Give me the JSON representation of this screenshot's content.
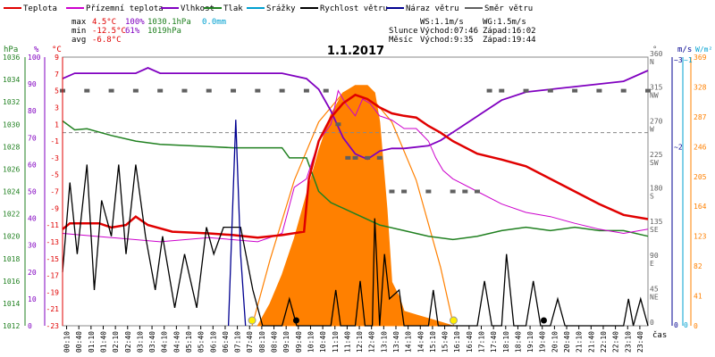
{
  "chart_data": {
    "type": "line",
    "title": "1.1.2017",
    "legend": [
      {
        "name": "Teplota",
        "color": "#e00000"
      },
      {
        "name": "Přízemní teplota",
        "color": "#cc00cc"
      },
      {
        "name": "Vlhkost",
        "color": "#8000c0"
      },
      {
        "name": "Tlak",
        "color": "#208020"
      },
      {
        "name": "Srážky",
        "color": "#00a0d0"
      },
      {
        "name": "Rychlost větru",
        "color": "#000000"
      },
      {
        "name": "Náraz větru",
        "color": "#000090"
      },
      {
        "name": "Směr větru",
        "color": "#606060"
      }
    ],
    "stats": {
      "max_label": "max",
      "max_temp": "4.5°C",
      "max_hum": "100%",
      "max_press": "1030.1hPa",
      "max_rain": "0.0mm",
      "min_label": "min",
      "min_temp": "-12.5°C",
      "min_hum": "61%",
      "min_press": "1019hPa",
      "avg_label": "avg",
      "avg_temp": "-6.8°C",
      "ws": "WS:1.1m/s",
      "wg": "WG:1.5m/s",
      "sun_label": "Slunce",
      "sun_rise": "Východ:07:46",
      "sun_set": "Západ:16:02",
      "moon_label": "Měsíc",
      "moon_rise": "Východ:9:35",
      "moon_set": "Západ:19:44"
    },
    "axes": {
      "hpa_label": "hPa",
      "pct_label": "%",
      "c_label": "°C",
      "deg_label": "°",
      "ms_label": "m/s",
      "wm2_label": "W/m²",
      "x_label": "čas",
      "hpa_ticks": [
        "1036",
        "1034",
        "1032",
        "1030",
        "1028",
        "1026",
        "1024",
        "1022",
        "1020",
        "1018",
        "1016",
        "1014",
        "1012"
      ],
      "pct_ticks": [
        "100",
        "90",
        "80",
        "70",
        "60",
        "50",
        "40",
        "30",
        "20",
        "10",
        "0"
      ],
      "c_ticks": [
        "9",
        "7",
        "5",
        "3",
        "1",
        "-1",
        "-3",
        "-5",
        "-7",
        "-9",
        "-11",
        "-13",
        "-15",
        "-17",
        "-19",
        "-21",
        "-23"
      ],
      "deg_ticks": [
        {
          "v": "360",
          "d": "N"
        },
        {
          "v": "315",
          "d": "NW"
        },
        {
          "v": "270",
          "d": "W"
        },
        {
          "v": "225",
          "d": "SW"
        },
        {
          "v": "180",
          "d": "S"
        },
        {
          "v": "135",
          "d": "SE"
        },
        {
          "v": "90",
          "d": "E"
        },
        {
          "v": "45",
          "d": "NE"
        },
        {
          "v": "0",
          "d": ""
        }
      ],
      "ms_top": "~3",
      "ms_mid": "~2",
      "ms_zero": "0",
      "rad_top": "~1",
      "rad_zero": "0",
      "wm2_ticks": [
        "369",
        "328",
        "287",
        "246",
        "205",
        "164",
        "123",
        "82",
        "41",
        "0"
      ],
      "time_ticks": [
        "00:10",
        "00:40",
        "01:10",
        "01:40",
        "02:10",
        "02:40",
        "03:10",
        "03:40",
        "04:10",
        "04:40",
        "05:10",
        "05:40",
        "06:10",
        "06:40",
        "07:10",
        "07:40",
        "08:10",
        "08:40",
        "09:10",
        "09:40",
        "10:10",
        "10:40",
        "11:10",
        "11:40",
        "12:10",
        "12:40",
        "13:10",
        "13:40",
        "14:10",
        "14:40",
        "15:10",
        "15:40",
        "16:10",
        "16:40",
        "17:10",
        "17:40",
        "18:10",
        "18:40",
        "19:10",
        "19:40",
        "20:10",
        "20:40",
        "21:10",
        "21:40",
        "22:10",
        "22:40",
        "23:10",
        "23:40"
      ]
    },
    "series": {
      "temp": [
        [
          0,
          -11.5
        ],
        [
          0.3,
          -10.8
        ],
        [
          1.5,
          -10.8
        ],
        [
          2.0,
          -11.3
        ],
        [
          2.6,
          -11.0
        ],
        [
          3.0,
          -10.0
        ],
        [
          3.5,
          -11.0
        ],
        [
          4.5,
          -11.8
        ],
        [
          6.0,
          -12.0
        ],
        [
          7.0,
          -12.2
        ],
        [
          8.0,
          -12.5
        ],
        [
          9.0,
          -12.2
        ],
        [
          9.9,
          -11.8
        ],
        [
          10.1,
          -5.5
        ],
        [
          10.5,
          -1.0
        ],
        [
          11.0,
          1.8
        ],
        [
          11.5,
          3.5
        ],
        [
          12.0,
          4.5
        ],
        [
          12.5,
          4.0
        ],
        [
          13.0,
          3.0
        ],
        [
          13.5,
          2.3
        ],
        [
          14.0,
          2.0
        ],
        [
          14.5,
          1.8
        ],
        [
          15.0,
          0.8
        ],
        [
          15.5,
          0.0
        ],
        [
          16.0,
          -1.0
        ],
        [
          17.0,
          -2.5
        ],
        [
          18.0,
          -3.2
        ],
        [
          19.0,
          -4.0
        ],
        [
          20.0,
          -5.5
        ],
        [
          21.0,
          -7.0
        ],
        [
          22.0,
          -8.5
        ],
        [
          23.0,
          -9.8
        ],
        [
          24.0,
          -10.3
        ]
      ],
      "ground": [
        [
          0,
          -12.0
        ],
        [
          2.0,
          -12.5
        ],
        [
          4.0,
          -13.0
        ],
        [
          6.0,
          -12.5
        ],
        [
          8.0,
          -13.0
        ],
        [
          9.0,
          -12.0
        ],
        [
          9.5,
          -6.5
        ],
        [
          10.0,
          -5.5
        ],
        [
          10.5,
          -1.0
        ],
        [
          11.0,
          1.0
        ],
        [
          11.3,
          5.0
        ],
        [
          11.6,
          3.5
        ],
        [
          12.0,
          2.0
        ],
        [
          12.3,
          4.0
        ],
        [
          12.6,
          3.5
        ],
        [
          13.0,
          2.0
        ],
        [
          13.5,
          1.5
        ],
        [
          14.0,
          0.5
        ],
        [
          14.5,
          0.5
        ],
        [
          15.0,
          -1.0
        ],
        [
          15.3,
          -3.0
        ],
        [
          15.6,
          -4.5
        ],
        [
          16.0,
          -5.5
        ],
        [
          17.0,
          -7.0
        ],
        [
          18.0,
          -8.5
        ],
        [
          19.0,
          -9.5
        ],
        [
          20.0,
          -10.0
        ],
        [
          21.0,
          -10.8
        ],
        [
          22.0,
          -11.5
        ],
        [
          23.0,
          -12.0
        ],
        [
          24.0,
          -11.5
        ]
      ],
      "humidity": [
        [
          0,
          92
        ],
        [
          0.5,
          94
        ],
        [
          2.0,
          94
        ],
        [
          3.0,
          94
        ],
        [
          3.5,
          96
        ],
        [
          4.0,
          94
        ],
        [
          6.0,
          94
        ],
        [
          8.0,
          94
        ],
        [
          9.0,
          94
        ],
        [
          10.0,
          92
        ],
        [
          10.5,
          88
        ],
        [
          11.0,
          80
        ],
        [
          11.5,
          70
        ],
        [
          12.0,
          64
        ],
        [
          12.5,
          62
        ],
        [
          13.0,
          65
        ],
        [
          13.5,
          66
        ],
        [
          14.0,
          66
        ],
        [
          15.0,
          67
        ],
        [
          15.5,
          69
        ],
        [
          16.0,
          72
        ],
        [
          17.0,
          78
        ],
        [
          18.0,
          84
        ],
        [
          19.0,
          87
        ],
        [
          20.0,
          88
        ],
        [
          21.0,
          89
        ],
        [
          22.0,
          90
        ],
        [
          23.0,
          91
        ],
        [
          24.0,
          95
        ]
      ],
      "pressure": [
        [
          0,
          1030.3
        ],
        [
          0.5,
          1029.5
        ],
        [
          1.0,
          1029.6
        ],
        [
          2.0,
          1029.0
        ],
        [
          3.0,
          1028.5
        ],
        [
          4.0,
          1028.2
        ],
        [
          6.0,
          1028.0
        ],
        [
          7.0,
          1027.9
        ],
        [
          8.0,
          1027.9
        ],
        [
          9.0,
          1027.9
        ],
        [
          9.3,
          1027.0
        ],
        [
          10.0,
          1027.0
        ],
        [
          10.5,
          1024.0
        ],
        [
          11.0,
          1023.0
        ],
        [
          12.0,
          1022.0
        ],
        [
          13.0,
          1021.0
        ],
        [
          14.0,
          1020.5
        ],
        [
          15.0,
          1020.0
        ],
        [
          16.0,
          1019.7
        ],
        [
          17.0,
          1020.0
        ],
        [
          18.0,
          1020.5
        ],
        [
          19.0,
          1020.8
        ],
        [
          20.0,
          1020.5
        ],
        [
          21.0,
          1020.8
        ],
        [
          22.0,
          1020.5
        ],
        [
          23.0,
          1020.5
        ],
        [
          24.0,
          1020.0
        ]
      ],
      "wind": [
        [
          0,
          0.6
        ],
        [
          0.3,
          1.6
        ],
        [
          0.6,
          0.8
        ],
        [
          1.0,
          1.8
        ],
        [
          1.3,
          0.4
        ],
        [
          1.6,
          1.4
        ],
        [
          2.0,
          1.0
        ],
        [
          2.3,
          1.8
        ],
        [
          2.6,
          0.8
        ],
        [
          3.0,
          1.8
        ],
        [
          3.4,
          1.0
        ],
        [
          3.8,
          0.4
        ],
        [
          4.1,
          1.0
        ],
        [
          4.6,
          0.2
        ],
        [
          5.0,
          0.8
        ],
        [
          5.5,
          0.2
        ],
        [
          5.9,
          1.1
        ],
        [
          6.2,
          0.8
        ],
        [
          6.6,
          1.1
        ],
        [
          7.0,
          1.1
        ],
        [
          7.3,
          1.1
        ],
        [
          7.8,
          0.4
        ],
        [
          8.2,
          0
        ],
        [
          9.0,
          0
        ],
        [
          9.3,
          0.3
        ],
        [
          9.6,
          0
        ],
        [
          11.0,
          0
        ],
        [
          11.2,
          0.4
        ],
        [
          11.4,
          0
        ],
        [
          12.0,
          0
        ],
        [
          12.2,
          0.5
        ],
        [
          12.4,
          0
        ],
        [
          12.7,
          0
        ],
        [
          12.8,
          1.2
        ],
        [
          13.0,
          0
        ],
        [
          13.2,
          0.8
        ],
        [
          13.4,
          0.3
        ],
        [
          13.8,
          0.4
        ],
        [
          14.0,
          0
        ],
        [
          15.0,
          0
        ],
        [
          15.2,
          0.4
        ],
        [
          15.4,
          0
        ],
        [
          16.0,
          0
        ],
        [
          17.0,
          0
        ],
        [
          17.3,
          0.5
        ],
        [
          17.6,
          0
        ],
        [
          18.0,
          0
        ],
        [
          18.2,
          0.8
        ],
        [
          18.5,
          0
        ],
        [
          19.0,
          0
        ],
        [
          19.3,
          0.5
        ],
        [
          19.6,
          0
        ],
        [
          20.0,
          0
        ],
        [
          20.3,
          0.3
        ],
        [
          20.6,
          0
        ],
        [
          23.0,
          0
        ],
        [
          23.2,
          0.3
        ],
        [
          23.4,
          0
        ],
        [
          23.7,
          0.3
        ],
        [
          24.0,
          0
        ]
      ],
      "gust": [
        [
          6.8,
          0
        ],
        [
          7.1,
          2.3
        ],
        [
          7.3,
          0.8
        ],
        [
          7.5,
          0
        ]
      ],
      "direction": [
        [
          0,
          315
        ],
        [
          1,
          315
        ],
        [
          2,
          315
        ],
        [
          3,
          315
        ],
        [
          4,
          315
        ],
        [
          5,
          315
        ],
        [
          6,
          315
        ],
        [
          7,
          315
        ],
        [
          8,
          315
        ],
        [
          9,
          315
        ],
        [
          10,
          315
        ],
        [
          10.8,
          315
        ],
        [
          11.3,
          270
        ],
        [
          11.7,
          225
        ],
        [
          12.0,
          225
        ],
        [
          12.5,
          225
        ],
        [
          13.0,
          225
        ],
        [
          13.5,
          180
        ],
        [
          14,
          180
        ],
        [
          15,
          180
        ],
        [
          16,
          180
        ],
        [
          16.5,
          180
        ],
        [
          17.0,
          180
        ],
        [
          17.5,
          315
        ],
        [
          18,
          315
        ],
        [
          19,
          315
        ],
        [
          20,
          315
        ],
        [
          21,
          315
        ],
        [
          22,
          315
        ],
        [
          23,
          315
        ],
        [
          24,
          315
        ]
      ],
      "rad_area": [
        [
          8.0,
          0
        ],
        [
          8.5,
          30
        ],
        [
          9.0,
          70
        ],
        [
          9.5,
          120
        ],
        [
          10.0,
          180
        ],
        [
          10.5,
          240
        ],
        [
          11.0,
          290
        ],
        [
          11.5,
          320
        ],
        [
          12.0,
          330
        ],
        [
          12.5,
          330
        ],
        [
          12.8,
          320
        ],
        [
          13.0,
          280
        ],
        [
          13.3,
          160
        ],
        [
          13.5,
          60
        ],
        [
          13.8,
          40
        ],
        [
          14.0,
          20
        ],
        [
          14.5,
          15
        ],
        [
          15.0,
          10
        ],
        [
          15.5,
          5
        ],
        [
          16.0,
          0
        ]
      ],
      "rad_theory": [
        [
          7.77,
          0
        ],
        [
          8.5,
          90
        ],
        [
          9.5,
          200
        ],
        [
          10.5,
          280
        ],
        [
          11.5,
          320
        ],
        [
          12.0,
          328
        ],
        [
          12.5,
          320
        ],
        [
          13.5,
          280
        ],
        [
          14.5,
          200
        ],
        [
          15.5,
          80
        ],
        [
          16.03,
          0
        ]
      ]
    }
  }
}
